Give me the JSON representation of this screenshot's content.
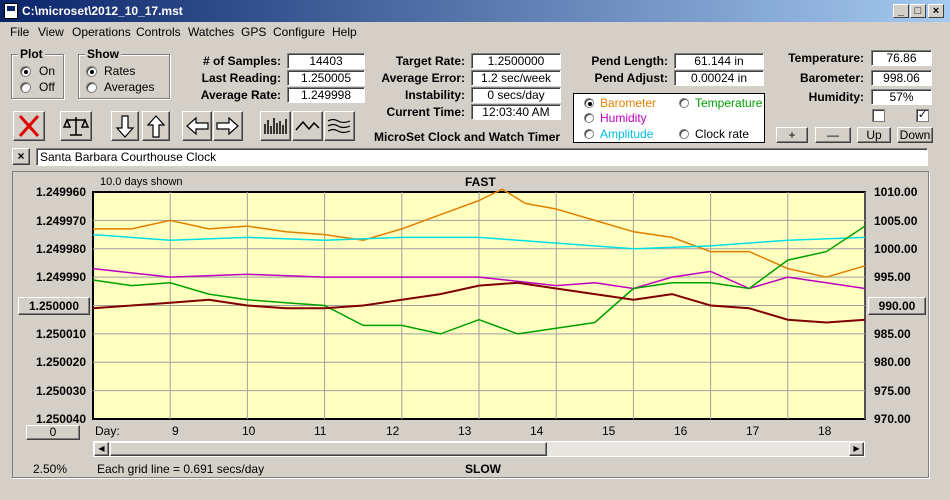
{
  "window": {
    "title": "C:\\microset\\2012_10_17.mst"
  },
  "menu": [
    "File",
    "View",
    "Operations",
    "Controls",
    "Watches",
    "GPS",
    "Configure",
    "Help"
  ],
  "plot_group": {
    "title": "Plot",
    "options": [
      "On",
      "Off"
    ],
    "selected": "On"
  },
  "show_group": {
    "title": "Show",
    "options": [
      "Rates",
      "Averages"
    ],
    "selected": "Rates"
  },
  "stats": [
    {
      "label": "# of Samples:",
      "value": "14403"
    },
    {
      "label": "Last Reading:",
      "value": "1.250005"
    },
    {
      "label": "Average Rate:",
      "value": "1.249998"
    }
  ],
  "rates": [
    {
      "label": "Target Rate:",
      "value": "1.2500000"
    },
    {
      "label": "Average Error:",
      "value": "1.2 sec/week"
    },
    {
      "label": "Instability:",
      "value": "0 secs/day"
    },
    {
      "label": "Current Time:",
      "value": "12:03:40 AM"
    }
  ],
  "subtitle": "MicroSet Clock and Watch Timer",
  "pend": [
    {
      "label": "Pend Length:",
      "value": "61.144 in"
    },
    {
      "label": "Pend Adjust:",
      "value": "0.00024 in"
    }
  ],
  "env": [
    {
      "label": "Temperature:",
      "value": "76.86"
    },
    {
      "label": "Barometer:",
      "value": "998.06"
    },
    {
      "label": "Humidity:",
      "value": "57%"
    }
  ],
  "series_select": {
    "items": [
      {
        "label": "Barometer",
        "color": "#e08000",
        "selected": true
      },
      {
        "label": "Temperature",
        "color": "#00a000",
        "selected": false
      },
      {
        "label": "Humidity",
        "color": "#c000c0",
        "selected": false
      },
      {
        "label": "Amplitude",
        "color": "#00c0e0",
        "selected": false
      },
      {
        "label": "Clock rate",
        "color": "#000000",
        "selected": false
      }
    ]
  },
  "checkboxes": [
    {
      "checked": false
    },
    {
      "checked": true
    }
  ],
  "nav_buttons": [
    "+",
    "—",
    "Up",
    "Down"
  ],
  "clock_name": "Santa Barbara Courthouse Clock",
  "close_glyph": "×",
  "chart": {
    "days_shown": "10.0 days shown",
    "top_label": "FAST",
    "bottom_label": "SLOW",
    "left_center_value": "1.250000",
    "right_center_value": "990.00",
    "bottom_left_button": "0",
    "day_label": "Day:",
    "zoom": "2.50%",
    "grid_note": "Each grid line = 0.691 secs/day"
  },
  "chart_data": {
    "type": "line",
    "x_range": [
      8,
      18
    ],
    "x_ticks": [
      "9",
      "10",
      "11",
      "12",
      "13",
      "14",
      "15",
      "16",
      "17",
      "18"
    ],
    "y_left": {
      "ticks": [
        "1.249960",
        "1.249970",
        "1.249980",
        "1.249990",
        "1.250000",
        "1.250010",
        "1.250020",
        "1.250030",
        "1.250040"
      ],
      "range": [
        1.24996,
        1.25004
      ],
      "inverted": true
    },
    "y_right": {
      "ticks": [
        "1010.00",
        "1005.00",
        "1000.00",
        "995.00",
        "990.00",
        "985.00",
        "980.00",
        "975.00",
        "970.00"
      ],
      "range": [
        970,
        1010
      ]
    },
    "series": [
      {
        "color": "#e08000",
        "x": [
          8,
          8.5,
          9,
          9.5,
          10,
          10.5,
          11,
          11.5,
          12,
          12.5,
          13,
          13.3,
          13.6,
          14,
          14.5,
          15,
          15.5,
          16,
          16.5,
          17,
          17.5,
          18
        ],
        "y": [
          1003.5,
          1003.5,
          1005,
          1003.5,
          1004,
          1003,
          1002.5,
          1001.5,
          1003.5,
          1006,
          1008.5,
          1010.5,
          1008,
          1007,
          1005,
          1003,
          1002,
          999.5,
          999.5,
          996.5,
          995,
          997
        ]
      },
      {
        "color": "#00e0e0",
        "x": [
          8,
          9,
          10,
          11,
          12,
          13,
          14,
          15,
          16,
          17,
          18
        ],
        "y": [
          1002.5,
          1001.5,
          1002,
          1001.5,
          1002,
          1002,
          1001,
          1000,
          1000.5,
          1001.5,
          1002
        ]
      },
      {
        "color": "#c000c0",
        "x": [
          8,
          9,
          10,
          11,
          12,
          13,
          14,
          14.5,
          15,
          15.5,
          16,
          16.5,
          17,
          17.5,
          18
        ],
        "y": [
          996.5,
          995,
          995.5,
          995,
          995,
          995,
          993.5,
          994,
          993,
          995,
          996,
          993,
          995,
          994,
          993
        ]
      },
      {
        "color": "#00a000",
        "x": [
          8,
          8.5,
          9,
          9.5,
          10,
          10.5,
          11,
          11.5,
          12,
          12.5,
          13,
          13.5,
          14,
          14.5,
          15,
          15.5,
          16,
          16.5,
          17,
          17.5,
          18
        ],
        "y": [
          994.5,
          993.5,
          994,
          992,
          991,
          990.5,
          990,
          986.5,
          986.5,
          985,
          987.5,
          985,
          986,
          987,
          993,
          994,
          994,
          993,
          998,
          999.5,
          1004
        ]
      },
      {
        "color": "#800000",
        "x": [
          8,
          8.5,
          9,
          9.5,
          10,
          10.5,
          11,
          11.5,
          12,
          12.5,
          13,
          13.5,
          14,
          14.5,
          15,
          15.5,
          16,
          16.5,
          17,
          17.5,
          18
        ],
        "y": [
          989.5,
          990,
          990.5,
          991,
          990,
          989.5,
          989.5,
          990,
          991,
          992,
          993.5,
          994,
          993,
          992,
          991,
          992,
          990,
          989.5,
          987.5,
          987,
          987.5
        ]
      }
    ]
  }
}
